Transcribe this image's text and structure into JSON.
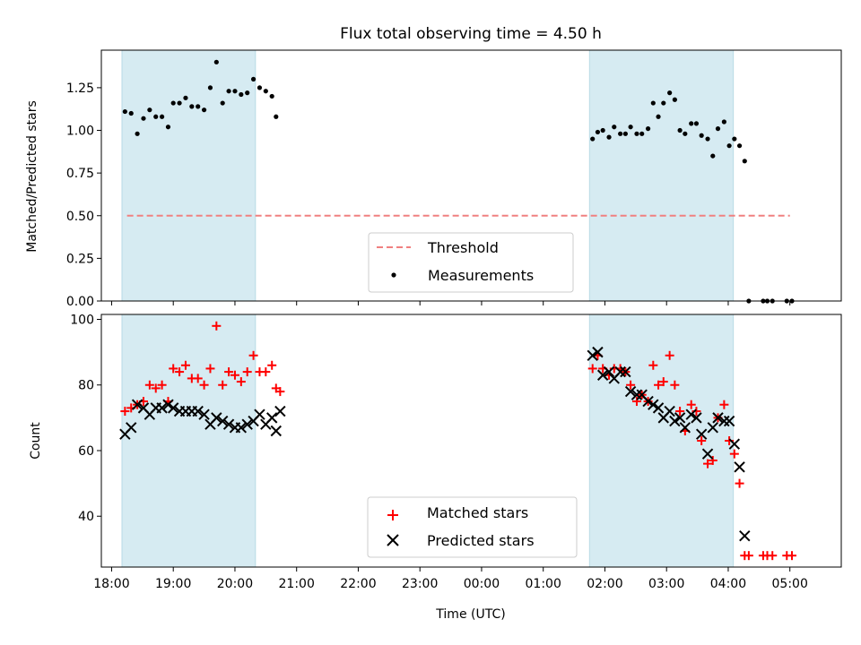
{
  "chart_data": [
    {
      "type": "scatter",
      "title": "Flux total observing time = 4.50 h",
      "ylabel": "Matched/Predicted stars",
      "xlabel": "",
      "ylim": [
        0,
        1.47
      ],
      "yticks": [
        "0.00",
        "0.25",
        "0.50",
        "0.75",
        "1.00",
        "1.25"
      ],
      "ytick_values": [
        0,
        0.25,
        0.5,
        0.75,
        1.0,
        1.25
      ],
      "threshold": {
        "y": 0.5,
        "x_range": [
          "18:15",
          "05:00"
        ],
        "color": "#f08080",
        "style": "dashed"
      },
      "shaded_intervals": [
        [
          "18:10",
          "20:20"
        ],
        [
          "01:45",
          "04:05"
        ]
      ],
      "legend": {
        "placement": "lower-center",
        "entries": [
          {
            "label": "Threshold",
            "marker": "dashed-line",
            "color": "#f08080"
          },
          {
            "label": "Measurements",
            "marker": "dot",
            "color": "#000000"
          }
        ]
      },
      "series": [
        {
          "name": "Measurements",
          "marker": "dot",
          "color": "#000000",
          "points": [
            [
              "18:13",
              1.11
            ],
            [
              "18:19",
              1.1
            ],
            [
              "18:25",
              0.98
            ],
            [
              "18:31",
              1.07
            ],
            [
              "18:37",
              1.12
            ],
            [
              "18:43",
              1.08
            ],
            [
              "18:49",
              1.08
            ],
            [
              "18:55",
              1.02
            ],
            [
              "19:00",
              1.16
            ],
            [
              "19:06",
              1.16
            ],
            [
              "19:12",
              1.19
            ],
            [
              "19:18",
              1.14
            ],
            [
              "19:24",
              1.14
            ],
            [
              "19:30",
              1.12
            ],
            [
              "19:36",
              1.25
            ],
            [
              "19:42",
              1.4
            ],
            [
              "19:48",
              1.16
            ],
            [
              "19:54",
              1.23
            ],
            [
              "20:00",
              1.23
            ],
            [
              "20:06",
              1.21
            ],
            [
              "20:12",
              1.22
            ],
            [
              "20:18",
              1.3
            ],
            [
              "20:24",
              1.25
            ],
            [
              "20:30",
              1.23
            ],
            [
              "20:36",
              1.2
            ],
            [
              "20:40",
              1.08
            ],
            [
              "01:48",
              0.95
            ],
            [
              "01:53",
              0.99
            ],
            [
              "01:58",
              1.0
            ],
            [
              "02:04",
              0.96
            ],
            [
              "02:09",
              1.02
            ],
            [
              "02:15",
              0.98
            ],
            [
              "02:20",
              0.98
            ],
            [
              "02:25",
              1.02
            ],
            [
              "02:31",
              0.98
            ],
            [
              "02:36",
              0.98
            ],
            [
              "02:42",
              1.01
            ],
            [
              "02:47",
              1.16
            ],
            [
              "02:52",
              1.08
            ],
            [
              "02:57",
              1.16
            ],
            [
              "03:03",
              1.22
            ],
            [
              "03:08",
              1.18
            ],
            [
              "03:13",
              1.0
            ],
            [
              "03:18",
              0.98
            ],
            [
              "03:24",
              1.04
            ],
            [
              "03:29",
              1.04
            ],
            [
              "03:34",
              0.97
            ],
            [
              "03:40",
              0.95
            ],
            [
              "03:45",
              0.85
            ],
            [
              "03:50",
              1.01
            ],
            [
              "03:56",
              1.05
            ],
            [
              "04:01",
              0.91
            ],
            [
              "04:06",
              0.95
            ],
            [
              "04:11",
              0.91
            ],
            [
              "04:16",
              0.82
            ],
            [
              "04:20",
              0.0
            ],
            [
              "04:34",
              0.0
            ],
            [
              "04:38",
              0.0
            ],
            [
              "04:43",
              0.0
            ],
            [
              "04:57",
              0.0
            ],
            [
              "05:02",
              0.0
            ]
          ]
        }
      ]
    },
    {
      "type": "scatter",
      "title": "",
      "ylabel": "Count",
      "xlabel": "Time (UTC)",
      "ylim": [
        24.5,
        101.5
      ],
      "yticks": [
        "40",
        "60",
        "80",
        "100"
      ],
      "ytick_values": [
        40,
        60,
        80,
        100
      ],
      "x_range": [
        "17:50",
        "05:50"
      ],
      "xticks": [
        "18:00",
        "19:00",
        "20:00",
        "21:00",
        "22:00",
        "23:00",
        "00:00",
        "01:00",
        "02:00",
        "03:00",
        "04:00",
        "05:00"
      ],
      "shaded_intervals": [
        [
          "18:10",
          "20:20"
        ],
        [
          "01:45",
          "04:05"
        ]
      ],
      "legend": {
        "placement": "lower-center",
        "entries": [
          {
            "label": "Matched stars",
            "marker": "plus",
            "color": "#ff0000"
          },
          {
            "label": "Predicted stars",
            "marker": "x",
            "color": "#000000"
          }
        ]
      },
      "series": [
        {
          "name": "Matched stars",
          "marker": "plus",
          "color": "#ff0000",
          "points": [
            [
              "18:13",
              72
            ],
            [
              "18:19",
              73
            ],
            [
              "18:25",
              74
            ],
            [
              "18:31",
              75
            ],
            [
              "18:37",
              80
            ],
            [
              "18:43",
              79
            ],
            [
              "18:49",
              80
            ],
            [
              "18:55",
              75
            ],
            [
              "19:00",
              85
            ],
            [
              "19:06",
              84
            ],
            [
              "19:12",
              86
            ],
            [
              "19:18",
              82
            ],
            [
              "19:24",
              82
            ],
            [
              "19:30",
              80
            ],
            [
              "19:36",
              85
            ],
            [
              "19:42",
              98
            ],
            [
              "19:48",
              80
            ],
            [
              "19:54",
              84
            ],
            [
              "20:00",
              83
            ],
            [
              "20:06",
              81
            ],
            [
              "20:12",
              84
            ],
            [
              "20:18",
              89
            ],
            [
              "20:24",
              84
            ],
            [
              "20:30",
              84
            ],
            [
              "20:36",
              86
            ],
            [
              "20:40",
              79
            ],
            [
              "20:44",
              78
            ],
            [
              "01:48",
              85
            ],
            [
              "01:53",
              89
            ],
            [
              "01:58",
              85
            ],
            [
              "02:04",
              83
            ],
            [
              "02:09",
              85
            ],
            [
              "02:15",
              85
            ],
            [
              "02:20",
              84
            ],
            [
              "02:25",
              80
            ],
            [
              "02:31",
              75
            ],
            [
              "02:36",
              77
            ],
            [
              "02:42",
              75
            ],
            [
              "02:47",
              86
            ],
            [
              "02:52",
              80
            ],
            [
              "02:57",
              81
            ],
            [
              "03:03",
              89
            ],
            [
              "03:08",
              80
            ],
            [
              "03:13",
              72
            ],
            [
              "03:18",
              66
            ],
            [
              "03:24",
              74
            ],
            [
              "03:29",
              72
            ],
            [
              "03:34",
              63
            ],
            [
              "03:40",
              56
            ],
            [
              "03:45",
              57
            ],
            [
              "03:50",
              70
            ],
            [
              "03:56",
              74
            ],
            [
              "04:01",
              63
            ],
            [
              "04:06",
              59
            ],
            [
              "04:11",
              50
            ],
            [
              "04:16",
              28
            ],
            [
              "04:20",
              28
            ],
            [
              "04:34",
              28
            ],
            [
              "04:38",
              28
            ],
            [
              "04:43",
              28
            ],
            [
              "04:57",
              28
            ],
            [
              "05:02",
              28
            ]
          ]
        },
        {
          "name": "Predicted stars",
          "marker": "x",
          "color": "#000000",
          "points": [
            [
              "18:13",
              65
            ],
            [
              "18:19",
              67
            ],
            [
              "18:25",
              74
            ],
            [
              "18:31",
              73
            ],
            [
              "18:37",
              71
            ],
            [
              "18:43",
              73
            ],
            [
              "18:49",
              73
            ],
            [
              "18:55",
              74
            ],
            [
              "19:00",
              73
            ],
            [
              "19:06",
              72
            ],
            [
              "19:12",
              72
            ],
            [
              "19:18",
              72
            ],
            [
              "19:24",
              72
            ],
            [
              "19:30",
              71
            ],
            [
              "19:36",
              68
            ],
            [
              "19:42",
              70
            ],
            [
              "19:48",
              69
            ],
            [
              "19:54",
              68
            ],
            [
              "20:00",
              67
            ],
            [
              "20:06",
              67
            ],
            [
              "20:12",
              68
            ],
            [
              "20:18",
              69
            ],
            [
              "20:24",
              71
            ],
            [
              "20:30",
              68
            ],
            [
              "20:36",
              70
            ],
            [
              "20:40",
              66
            ],
            [
              "20:44",
              72
            ],
            [
              "01:48",
              89
            ],
            [
              "01:53",
              90
            ],
            [
              "01:58",
              83
            ],
            [
              "02:04",
              84
            ],
            [
              "02:09",
              82
            ],
            [
              "02:15",
              84
            ],
            [
              "02:20",
              84
            ],
            [
              "02:25",
              78
            ],
            [
              "02:31",
              77
            ],
            [
              "02:36",
              77
            ],
            [
              "02:42",
              75
            ],
            [
              "02:47",
              74
            ],
            [
              "02:52",
              73
            ],
            [
              "02:57",
              70
            ],
            [
              "03:03",
              72
            ],
            [
              "03:08",
              69
            ],
            [
              "03:13",
              70
            ],
            [
              "03:18",
              67
            ],
            [
              "03:24",
              71
            ],
            [
              "03:29",
              70
            ],
            [
              "03:34",
              65
            ],
            [
              "03:40",
              59
            ],
            [
              "03:45",
              67
            ],
            [
              "03:50",
              70
            ],
            [
              "03:56",
              69
            ],
            [
              "04:01",
              69
            ],
            [
              "04:06",
              62
            ],
            [
              "04:11",
              55
            ],
            [
              "04:16",
              34
            ]
          ]
        }
      ]
    }
  ]
}
